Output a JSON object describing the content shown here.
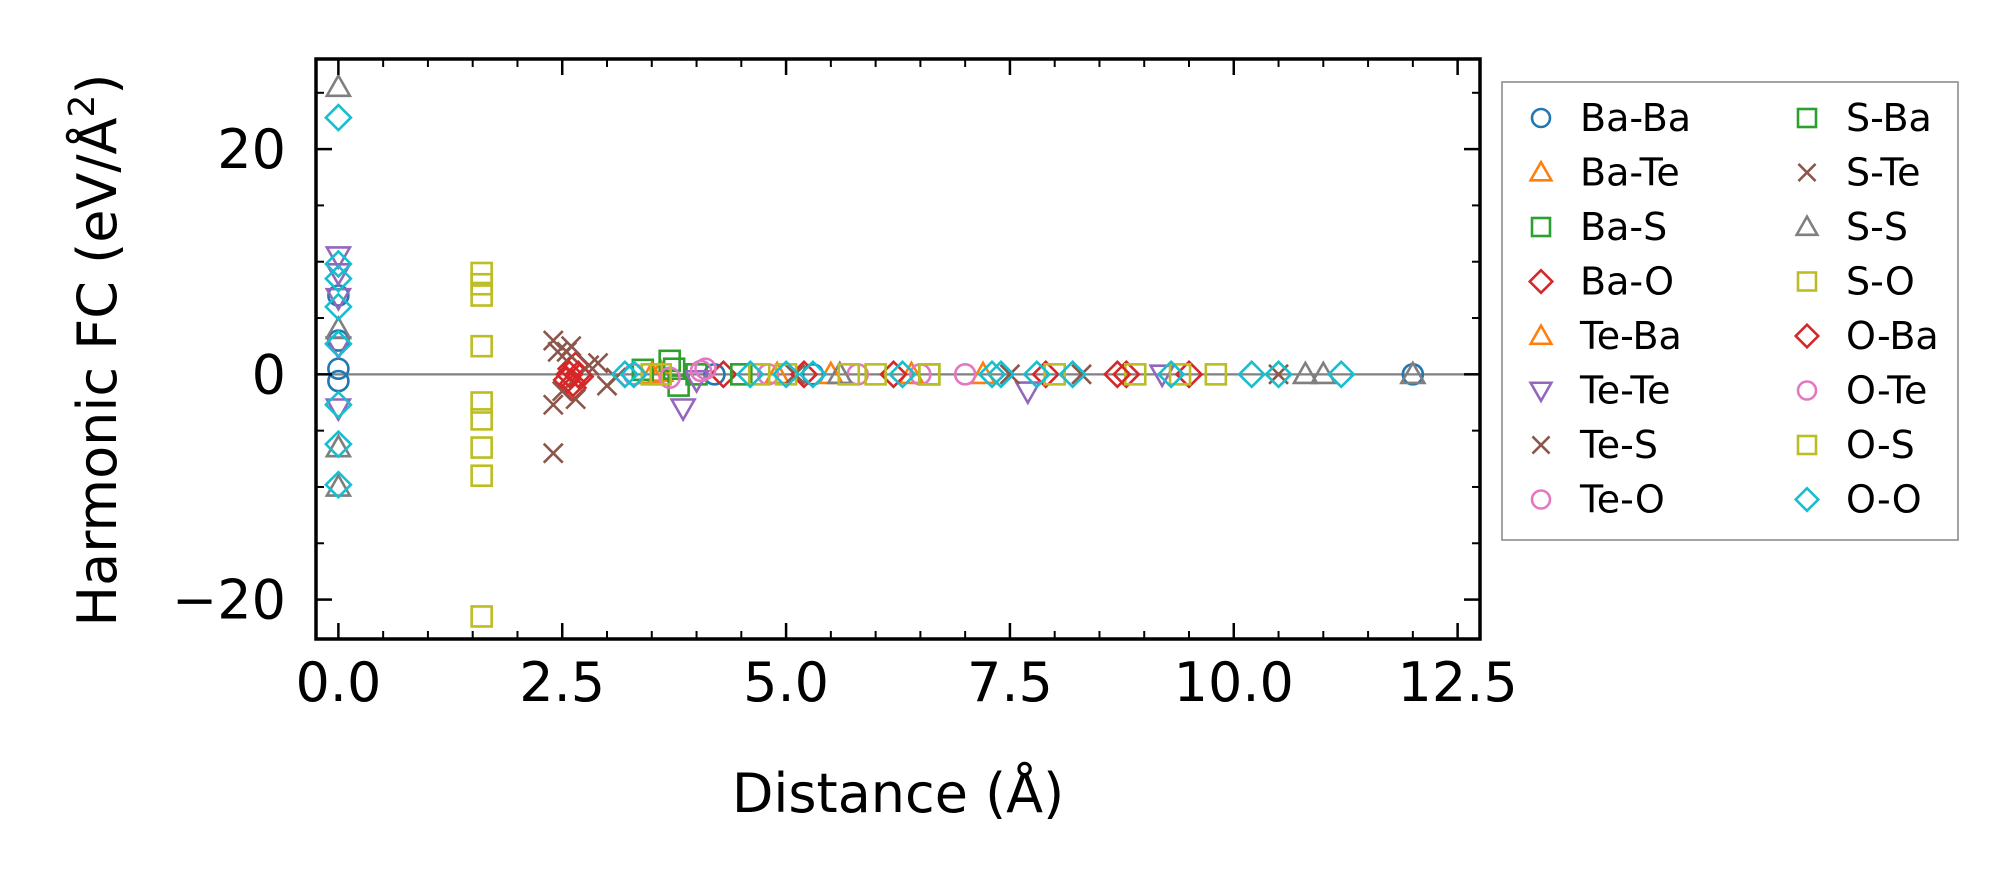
{
  "chart_data": {
    "type": "scatter",
    "xlabel": "Distance (Å)",
    "ylabel": "Harmonic FC (eV/Å",
    "ylabel_sup": "2",
    "ylabel_close": ")",
    "xlim": [
      -0.25,
      12.75
    ],
    "ylim": [
      -23.5,
      28.0
    ],
    "xticks": [
      0.0,
      2.5,
      5.0,
      7.5,
      10.0,
      12.5
    ],
    "xtick_labels": [
      "0.0",
      "2.5",
      "5.0",
      "7.5",
      "10.0",
      "12.5"
    ],
    "yticks": [
      -20,
      0,
      20
    ],
    "ytick_labels": [
      "−20",
      "0",
      "20"
    ],
    "zero_line": true,
    "legend": {
      "placement": "outside-right",
      "columns": 2
    },
    "series": [
      {
        "name": "Ba-Ba",
        "marker": "o",
        "color": "#1f77b4",
        "points": [
          [
            0,
            0.5
          ],
          [
            0,
            -0.6
          ],
          [
            0,
            3.0
          ],
          [
            0,
            7.0
          ],
          [
            4.2,
            0
          ],
          [
            5.3,
            0
          ],
          [
            12.0,
            0
          ]
        ]
      },
      {
        "name": "Ba-Te",
        "marker": "^",
        "color": "#ff7f0e",
        "points": [
          [
            3.6,
            0.2
          ],
          [
            4.9,
            0
          ],
          [
            6.4,
            0
          ]
        ]
      },
      {
        "name": "Ba-S",
        "marker": "s",
        "color": "#2ca02c",
        "points": [
          [
            3.4,
            0.4
          ],
          [
            3.7,
            1.2
          ],
          [
            3.8,
            -1.0
          ],
          [
            4.0,
            0
          ]
        ]
      },
      {
        "name": "Ba-O",
        "marker": "D",
        "color": "#d62728",
        "points": [
          [
            2.55,
            -0.5
          ],
          [
            2.6,
            0.5
          ],
          [
            2.62,
            -1.2
          ],
          [
            2.65,
            0.8
          ],
          [
            2.68,
            0
          ],
          [
            2.7,
            -0.2
          ],
          [
            4.3,
            0
          ],
          [
            6.2,
            0
          ],
          [
            7.9,
            0
          ],
          [
            8.8,
            0
          ],
          [
            9.5,
            0
          ]
        ]
      },
      {
        "name": "Te-Ba",
        "marker": "^",
        "color": "#ff7f0e",
        "points": [
          [
            3.5,
            0
          ],
          [
            5.5,
            0
          ],
          [
            7.2,
            0
          ]
        ]
      },
      {
        "name": "Te-Te",
        "marker": "v",
        "color": "#9467bd",
        "points": [
          [
            0,
            10.5
          ],
          [
            0,
            9.0
          ],
          [
            0,
            6.8
          ],
          [
            0,
            2.5
          ],
          [
            0,
            -3.0
          ],
          [
            3.85,
            -3.0
          ],
          [
            4.0,
            -0.5
          ],
          [
            7.7,
            -1.5
          ],
          [
            9.2,
            0
          ]
        ]
      },
      {
        "name": "Te-S",
        "marker": "x",
        "color": "#8c564b",
        "points": [
          [
            2.4,
            3.0
          ],
          [
            2.4,
            -2.7
          ],
          [
            2.4,
            -7.0
          ],
          [
            2.45,
            2.0
          ],
          [
            2.5,
            -1.5
          ],
          [
            2.6,
            2.5
          ],
          [
            2.9,
            1.0
          ],
          [
            3.0,
            -1.0
          ],
          [
            5.1,
            0
          ],
          [
            7.5,
            0
          ],
          [
            10.5,
            0
          ]
        ]
      },
      {
        "name": "Te-O",
        "marker": "o",
        "color": "#e377c2",
        "points": [
          [
            3.3,
            0
          ],
          [
            4.1,
            0.5
          ],
          [
            4.8,
            0
          ],
          [
            5.8,
            0
          ],
          [
            7.0,
            0
          ]
        ]
      },
      {
        "name": "S-Ba",
        "marker": "s",
        "color": "#2ca02c",
        "points": [
          [
            3.75,
            0.5
          ],
          [
            4.5,
            0
          ],
          [
            6.6,
            0
          ]
        ]
      },
      {
        "name": "S-Te",
        "marker": "x",
        "color": "#8c564b",
        "points": [
          [
            2.55,
            2.0
          ],
          [
            2.65,
            -2.2
          ],
          [
            2.8,
            0.8
          ],
          [
            3.1,
            -0.3
          ],
          [
            8.3,
            0
          ]
        ]
      },
      {
        "name": "S-S",
        "marker": "^",
        "color": "#7f7f7f",
        "points": [
          [
            0,
            25.5
          ],
          [
            0,
            4.0
          ],
          [
            0,
            -6.5
          ],
          [
            0,
            -10.0
          ],
          [
            5.6,
            0
          ],
          [
            10.8,
            0
          ],
          [
            11.0,
            0
          ],
          [
            12.0,
            0
          ]
        ]
      },
      {
        "name": "S-O",
        "marker": "s",
        "color": "#bcbd22",
        "points": [
          [
            1.6,
            9.0
          ],
          [
            1.6,
            8.0
          ],
          [
            1.6,
            7.0
          ],
          [
            1.6,
            2.5
          ],
          [
            1.6,
            -2.5
          ],
          [
            1.6,
            -4.0
          ],
          [
            1.6,
            -6.5
          ],
          [
            1.6,
            -9.0
          ],
          [
            1.6,
            -21.5
          ],
          [
            3.5,
            0
          ],
          [
            4.7,
            0
          ],
          [
            6.0,
            0
          ],
          [
            8.9,
            0
          ],
          [
            9.8,
            0
          ]
        ]
      },
      {
        "name": "O-Ba",
        "marker": "D",
        "color": "#d62728",
        "points": [
          [
            2.58,
            0
          ],
          [
            2.62,
            -0.8
          ],
          [
            5.2,
            0
          ],
          [
            8.7,
            0
          ]
        ]
      },
      {
        "name": "O-Te",
        "marker": "o",
        "color": "#e377c2",
        "points": [
          [
            3.7,
            -0.3
          ],
          [
            4.05,
            0.3
          ],
          [
            6.5,
            0
          ]
        ]
      },
      {
        "name": "O-S",
        "marker": "s",
        "color": "#bcbd22",
        "points": [
          [
            3.6,
            0
          ],
          [
            5.0,
            0
          ],
          [
            5.7,
            0
          ],
          [
            6.6,
            0
          ],
          [
            8.0,
            0
          ],
          [
            9.4,
            0
          ]
        ]
      },
      {
        "name": "O-O",
        "marker": "D",
        "color": "#17becf",
        "points": [
          [
            0,
            22.8
          ],
          [
            0,
            9.8
          ],
          [
            0,
            8.5
          ],
          [
            0,
            6.0
          ],
          [
            0,
            2.7
          ],
          [
            0,
            -2.7
          ],
          [
            0,
            -6.2
          ],
          [
            0,
            -9.8
          ],
          [
            3.2,
            0
          ],
          [
            3.3,
            0
          ],
          [
            4.6,
            0
          ],
          [
            5.0,
            0
          ],
          [
            5.3,
            0
          ],
          [
            6.3,
            0
          ],
          [
            7.3,
            0
          ],
          [
            7.4,
            0
          ],
          [
            7.8,
            0
          ],
          [
            8.2,
            0
          ],
          [
            9.3,
            0
          ],
          [
            10.2,
            0
          ],
          [
            10.5,
            0
          ],
          [
            11.2,
            0
          ]
        ]
      }
    ]
  }
}
